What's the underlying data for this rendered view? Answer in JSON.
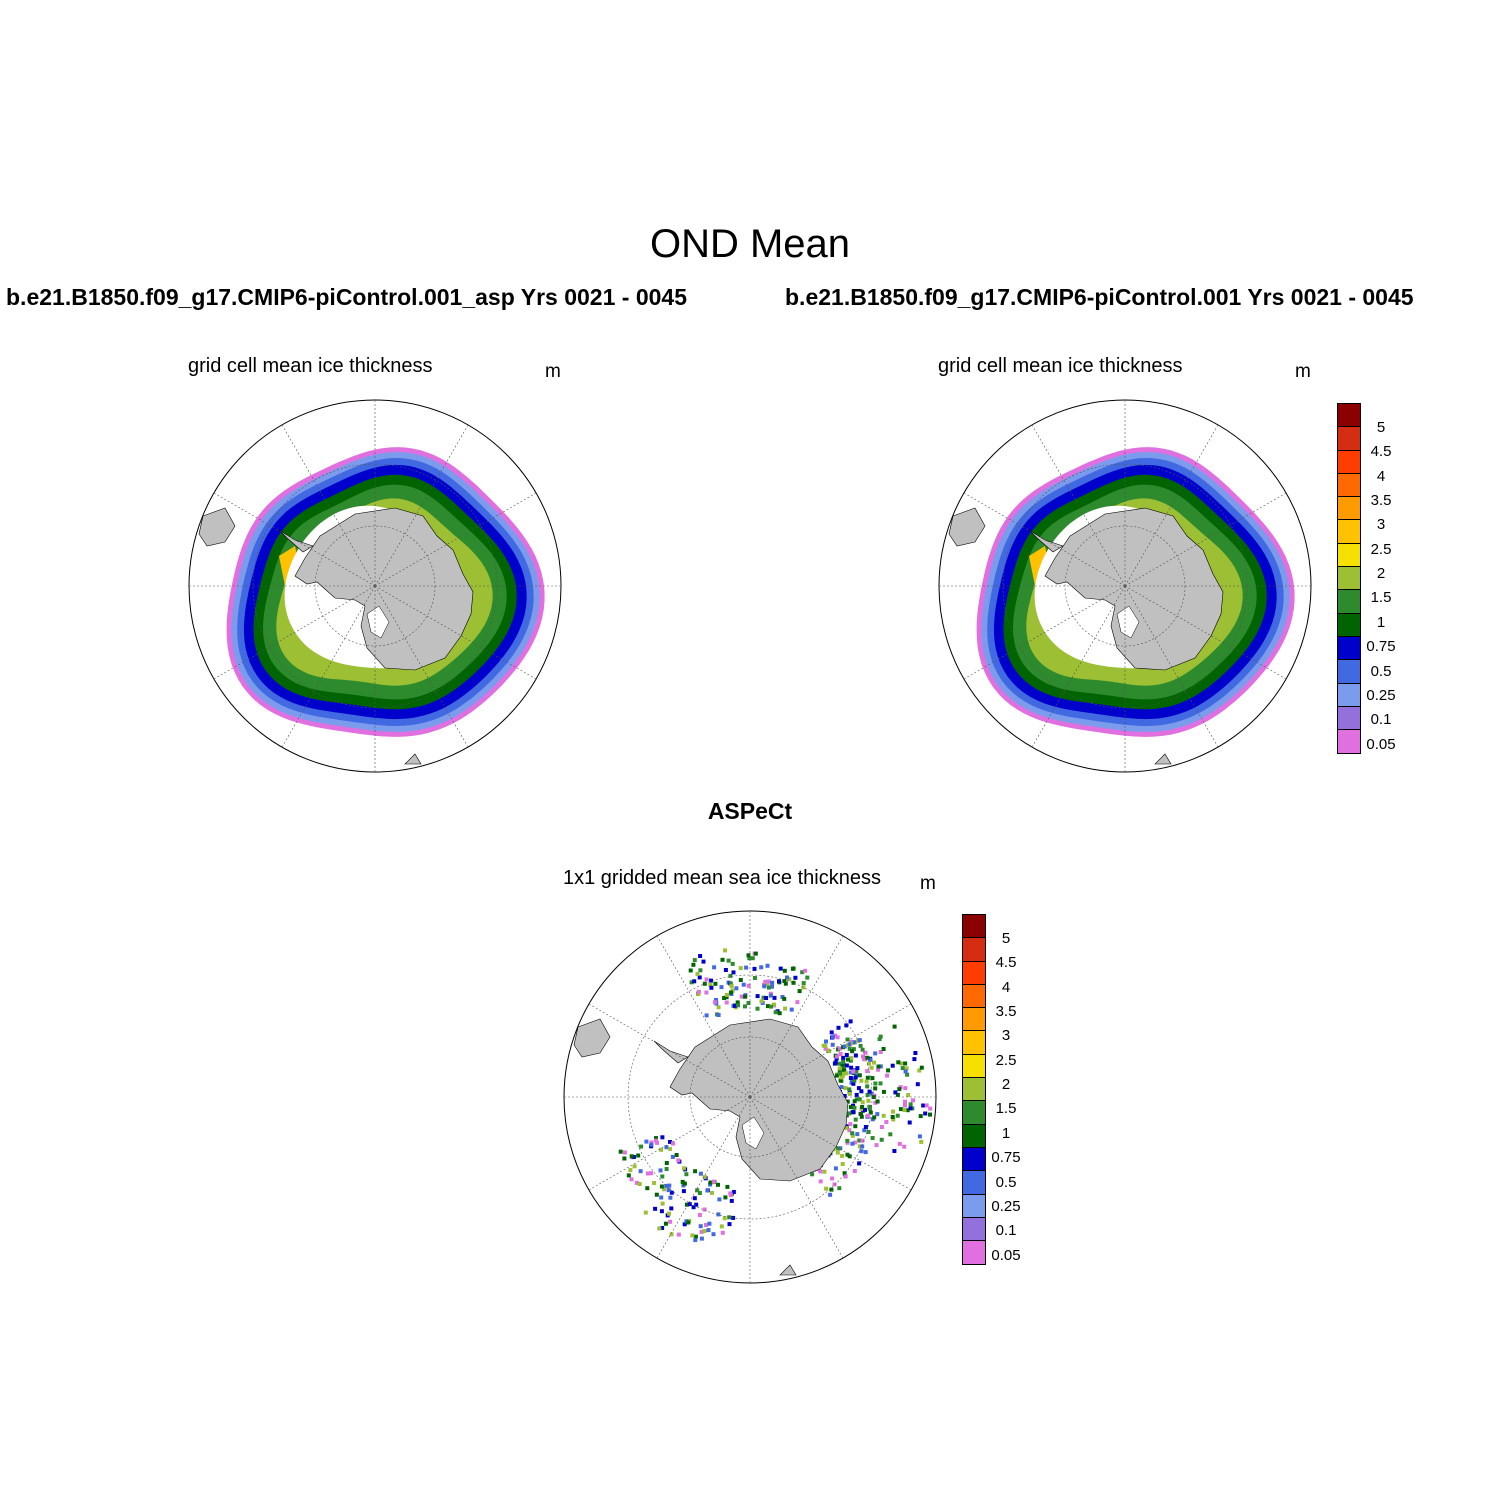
{
  "header": {
    "title": "OND Mean",
    "left_run": "b.e21.B1850.f09_g17.CMIP6-piControl.001_asp  Yrs 0021 - 0045",
    "right_run": "b.e21.B1850.f09_g17.CMIP6-piControl.001  Yrs 0021 - 0045",
    "obs_title": "ASPeCt"
  },
  "panels": [
    {
      "id": "model-asp",
      "title": "grid cell mean ice thickness",
      "units": "m"
    },
    {
      "id": "model-ctrl",
      "title": "grid cell mean ice thickness",
      "units": "m"
    },
    {
      "id": "aspect-obs",
      "title": "1x1 gridded mean sea ice thickness",
      "units": "m"
    }
  ],
  "legend": {
    "labels": [
      "5",
      "4.5",
      "4",
      "3.5",
      "3",
      "2.5",
      "2",
      "1.5",
      "1",
      "0.75",
      "0.5",
      "0.25",
      "0.1",
      "0.05"
    ],
    "colors": [
      "#8b0000",
      "#d42d12",
      "#ff3d00",
      "#ff6a00",
      "#ff9a00",
      "#ffc200",
      "#f5e000",
      "#9cbf34",
      "#2d8b2d",
      "#006400",
      "#0000cd",
      "#4169e1",
      "#7b9ced",
      "#9370db",
      "#e070e0"
    ]
  },
  "map_colors": {
    "land": "#c0c0c0",
    "thick": "#ffc200",
    "medium": "#2d8b2d",
    "dark_green": "#006400",
    "lime": "#9cbf34",
    "dark_blue": "#0000cd",
    "royal": "#4169e1",
    "light_blue": "#7b9ced",
    "pink": "#e070e0"
  }
}
